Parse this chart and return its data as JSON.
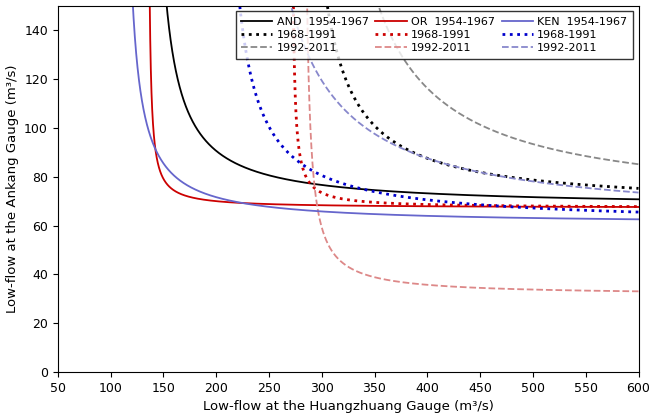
{
  "xlabel": "Low-flow at the Huangzhuang Gauge (m³/s)",
  "ylabel": "Low-flow at the Ankang Gauge (m³/s)",
  "xlim": [
    50,
    600
  ],
  "ylim": [
    0,
    150
  ],
  "xticks": [
    50,
    100,
    150,
    200,
    250,
    300,
    350,
    400,
    450,
    500,
    550,
    600
  ],
  "yticks": [
    0,
    20,
    40,
    60,
    80,
    100,
    120,
    140
  ],
  "curves": [
    {
      "name": "AND_1954",
      "x_asym": 135,
      "y_asym": 67.5,
      "k": 1500,
      "color": "#000000",
      "ls": "-",
      "lw": 1.3
    },
    {
      "name": "AND_1968",
      "x_asym": 275,
      "y_asym": 67.5,
      "k": 2500,
      "color": "#000000",
      "ls": ":",
      "lw": 2.0
    },
    {
      "name": "AND_1992",
      "x_asym": 287,
      "y_asym": 67.5,
      "k": 5500,
      "color": "#888888",
      "ls": "--",
      "lw": 1.3
    },
    {
      "name": "OR_1954",
      "x_asym": 135,
      "y_asym": 67.2,
      "k": 180,
      "color": "#cc0000",
      "ls": "-",
      "lw": 1.3
    },
    {
      "name": "OR_1968",
      "x_asym": 271,
      "y_asym": 67.2,
      "k": 180,
      "color": "#cc0000",
      "ls": ":",
      "lw": 2.0
    },
    {
      "name": "OR_1992",
      "x_asym": 282,
      "y_asym": 31.5,
      "k": 500,
      "color": "#dd8888",
      "ls": "--",
      "lw": 1.3
    },
    {
      "name": "KEN_1954",
      "x_asym": 110,
      "y_asym": 60.5,
      "k": 1000,
      "color": "#6666cc",
      "ls": "-",
      "lw": 1.3
    },
    {
      "name": "KEN_1968",
      "x_asym": 200,
      "y_asym": 60.5,
      "k": 2000,
      "color": "#0000cc",
      "ls": ":",
      "lw": 2.0
    },
    {
      "name": "KEN_1992",
      "x_asym": 215,
      "y_asym": 60.5,
      "k": 5000,
      "color": "#8888cc",
      "ls": "--",
      "lw": 1.3
    }
  ],
  "legend_rows": [
    {
      "label": "AND",
      "color": "#000000"
    },
    {
      "label": "OR",
      "color": "#cc0000"
    },
    {
      "label": "KEN",
      "color": "#6666cc"
    }
  ],
  "legend_fontsize": 8.0,
  "tick_fontsize": 9,
  "label_fontsize": 9.5
}
